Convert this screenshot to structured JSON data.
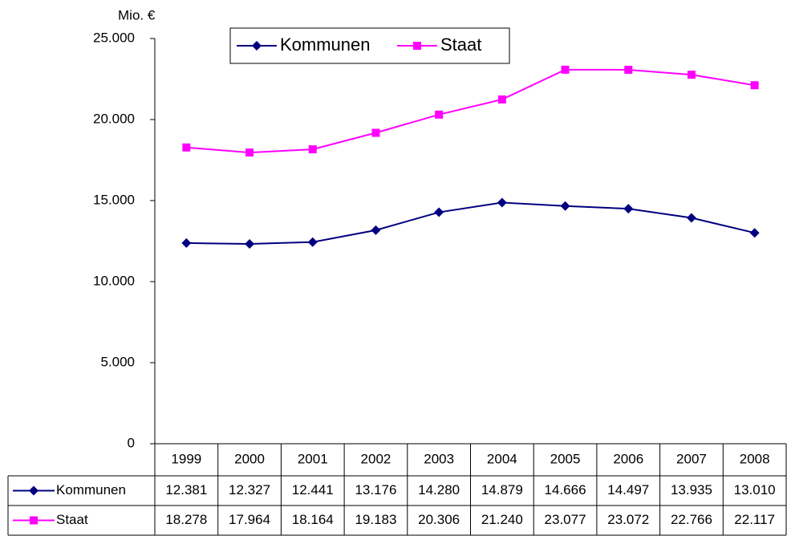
{
  "chart_data": {
    "type": "line",
    "y_label": "Mio. €",
    "categories": [
      "1999",
      "2000",
      "2001",
      "2002",
      "2003",
      "2004",
      "2005",
      "2006",
      "2007",
      "2008"
    ],
    "series": [
      {
        "name": "Kommunen",
        "color": "#000080",
        "marker": "diamond",
        "values": [
          12381,
          12327,
          12441,
          13176,
          14280,
          14879,
          14666,
          14497,
          13935,
          13010
        ],
        "value_labels": [
          "12.381",
          "12.327",
          "12.441",
          "13.176",
          "14.280",
          "14.879",
          "14.666",
          "14.497",
          "13.935",
          "13.010"
        ]
      },
      {
        "name": "Staat",
        "color": "#ff00ff",
        "marker": "square",
        "values": [
          18278,
          17964,
          18164,
          19183,
          20306,
          21240,
          23077,
          23072,
          22766,
          22117
        ],
        "value_labels": [
          "18.278",
          "17.964",
          "18.164",
          "19.183",
          "20.306",
          "21.240",
          "23.077",
          "23.072",
          "22.766",
          "22.117"
        ]
      }
    ],
    "ylim": [
      0,
      25000
    ],
    "yticks": [
      0,
      {
        "value": 5000,
        "label": "5.000"
      },
      {
        "value": 10000,
        "label": "10.000"
      },
      {
        "value": 15000,
        "label": "15.000"
      },
      {
        "value": 20000,
        "label": "20.000"
      },
      {
        "value": 25000,
        "label": "25.000"
      }
    ],
    "grid": false,
    "legend": "top"
  }
}
